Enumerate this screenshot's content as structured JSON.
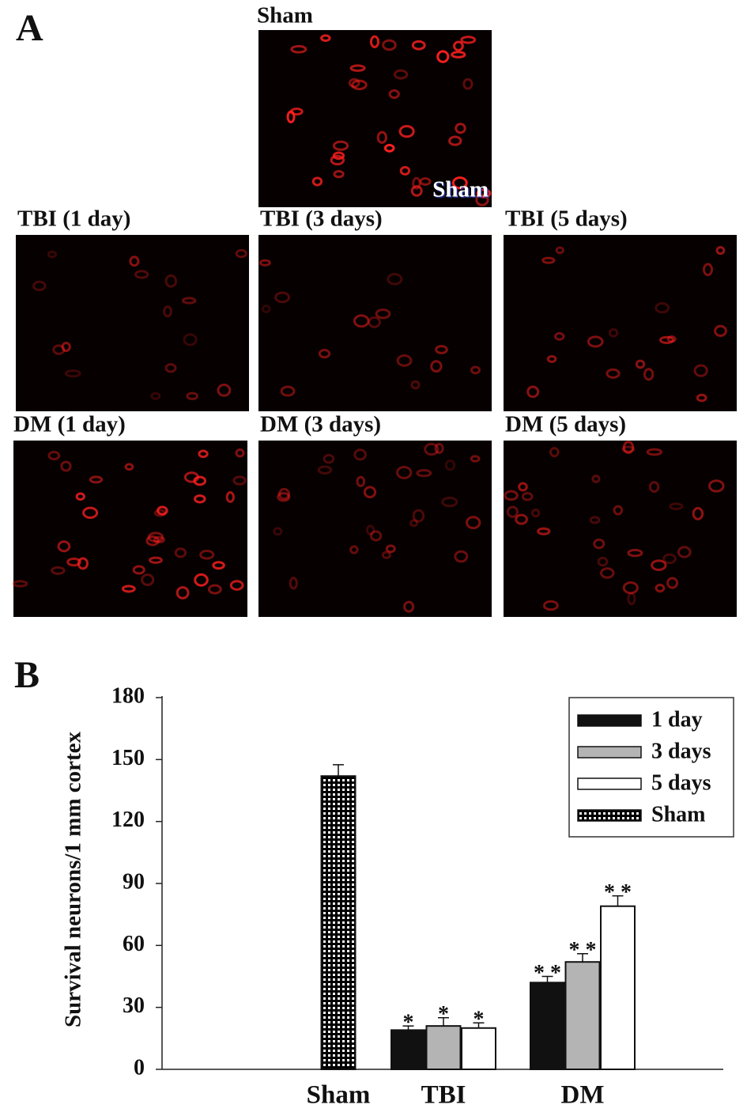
{
  "panel_a": {
    "label": "A",
    "images": [
      {
        "title": "Sham",
        "overlay": "Sham"
      },
      {
        "title": "TBI (1 day)"
      },
      {
        "title": "TBI (3 days)"
      },
      {
        "title": "TBI (5 days)"
      },
      {
        "title": "DM (1 day)"
      },
      {
        "title": "DM (3 days)"
      },
      {
        "title": "DM (5 days)"
      }
    ]
  },
  "chart_data": {
    "type": "bar",
    "panel_label": "B",
    "y_label": "Survival neurons/1 mm cortex",
    "categories": [
      "Sham",
      "TBI",
      "DM"
    ],
    "series": [
      {
        "name": "1 day",
        "color": "#111111",
        "values": [
          null,
          19,
          42
        ],
        "errors": [
          null,
          2,
          3
        ],
        "markers": [
          null,
          "*",
          "* *"
        ]
      },
      {
        "name": "3 days",
        "color": "#b4b4b4",
        "values": [
          null,
          21,
          52
        ],
        "errors": [
          null,
          4,
          4
        ],
        "markers": [
          null,
          "*",
          "* *"
        ]
      },
      {
        "name": "5 days",
        "color": "#ffffff",
        "values": [
          null,
          20,
          79
        ],
        "errors": [
          null,
          2.5,
          5
        ],
        "markers": [
          null,
          "*",
          "* *"
        ]
      },
      {
        "name": "Sham",
        "color": "#000000",
        "fill_pattern": "dots",
        "values": [
          142,
          null,
          null
        ],
        "errors": [
          5.5,
          null,
          null
        ],
        "markers": [
          null,
          null,
          null
        ]
      }
    ],
    "ylim": [
      0,
      180
    ],
    "yticks": [
      0,
      30,
      60,
      90,
      120,
      150,
      180
    ],
    "legend": "top-right"
  }
}
